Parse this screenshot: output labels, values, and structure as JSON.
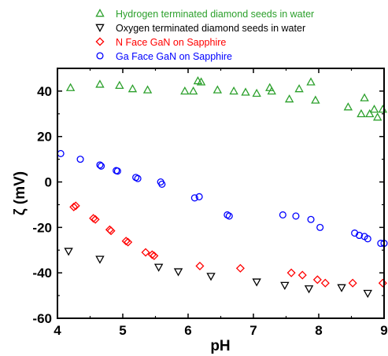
{
  "chart_data": {
    "type": "scatter",
    "xlabel": "pH",
    "ylabel": "ζ (mV)",
    "xlim": [
      4,
      9
    ],
    "ylim": [
      -60,
      50
    ],
    "xticks": [
      4,
      5,
      6,
      7,
      8,
      9
    ],
    "yticks": [
      -60,
      -40,
      -20,
      0,
      20,
      40
    ],
    "legend_position": "top",
    "series": [
      {
        "name": "Hydrogen terminated diamond seeds in water",
        "marker": "triangle-up",
        "color": "#2ca02c",
        "points": [
          [
            4.2,
            41.5
          ],
          [
            4.65,
            43
          ],
          [
            4.95,
            42.5
          ],
          [
            5.15,
            41
          ],
          [
            5.38,
            40.5
          ],
          [
            5.95,
            40
          ],
          [
            6.08,
            40
          ],
          [
            6.15,
            44.5
          ],
          [
            6.2,
            44
          ],
          [
            6.45,
            40.5
          ],
          [
            6.7,
            40
          ],
          [
            6.88,
            39.5
          ],
          [
            7.05,
            39
          ],
          [
            7.25,
            41.5
          ],
          [
            7.28,
            40
          ],
          [
            7.55,
            36.5
          ],
          [
            7.7,
            41
          ],
          [
            7.88,
            44
          ],
          [
            7.95,
            36
          ],
          [
            8.45,
            33
          ],
          [
            8.65,
            30
          ],
          [
            8.7,
            37
          ],
          [
            8.78,
            30
          ],
          [
            8.85,
            32
          ],
          [
            8.9,
            28.5
          ],
          [
            8.98,
            32
          ]
        ]
      },
      {
        "name": "Oxygen terminated diamond seeds in water",
        "marker": "triangle-down",
        "color": "#000000",
        "points": [
          [
            4.17,
            -30.5
          ],
          [
            4.65,
            -34
          ],
          [
            5.55,
            -37.5
          ],
          [
            5.85,
            -39.5
          ],
          [
            6.35,
            -41.5
          ],
          [
            7.05,
            -44
          ],
          [
            7.48,
            -45.5
          ],
          [
            7.85,
            -47
          ],
          [
            8.35,
            -46.5
          ],
          [
            8.75,
            -49
          ]
        ]
      },
      {
        "name": "N Face GaN on Sapphire",
        "marker": "diamond",
        "color": "#ff0000",
        "points": [
          [
            4.25,
            -11
          ],
          [
            4.28,
            -10.5
          ],
          [
            4.55,
            -16
          ],
          [
            4.58,
            -16.5
          ],
          [
            4.8,
            -21
          ],
          [
            4.82,
            -21.5
          ],
          [
            5.05,
            -26
          ],
          [
            5.08,
            -26.5
          ],
          [
            5.35,
            -31
          ],
          [
            5.45,
            -32
          ],
          [
            5.48,
            -32.5
          ],
          [
            6.18,
            -37
          ],
          [
            6.8,
            -38
          ],
          [
            7.58,
            -40
          ],
          [
            7.75,
            -41
          ],
          [
            7.98,
            -43
          ],
          [
            8.1,
            -44.5
          ],
          [
            8.52,
            -44.5
          ],
          [
            8.98,
            -44.5
          ]
        ]
      },
      {
        "name": "Ga Face GaN on Sapphire",
        "marker": "circle",
        "color": "#0000ff",
        "points": [
          [
            4.05,
            12.5
          ],
          [
            4.35,
            10
          ],
          [
            4.65,
            7.5
          ],
          [
            4.67,
            7
          ],
          [
            4.9,
            5
          ],
          [
            4.92,
            4.8
          ],
          [
            5.2,
            2
          ],
          [
            5.23,
            1.5
          ],
          [
            5.58,
            0
          ],
          [
            5.6,
            -1
          ],
          [
            6.1,
            -7
          ],
          [
            6.17,
            -6.5
          ],
          [
            6.6,
            -14.5
          ],
          [
            6.63,
            -15
          ],
          [
            7.45,
            -14.5
          ],
          [
            7.65,
            -15
          ],
          [
            7.88,
            -16.5
          ],
          [
            8.02,
            -20
          ],
          [
            8.55,
            -22.5
          ],
          [
            8.62,
            -23.5
          ],
          [
            8.7,
            -24
          ],
          [
            8.75,
            -25
          ],
          [
            8.95,
            -27
          ],
          [
            9.0,
            -27
          ]
        ]
      }
    ]
  }
}
